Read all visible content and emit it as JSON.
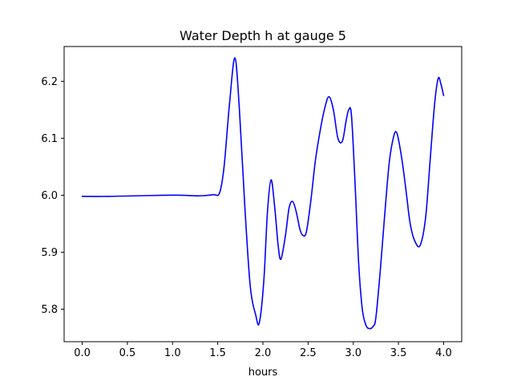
{
  "chart_data": {
    "type": "line",
    "title": "Water Depth h at gauge 5",
    "xlabel": "hours",
    "ylabel": "",
    "xlim": [
      -0.2,
      4.2
    ],
    "ylim": [
      5.743,
      6.261
    ],
    "x_ticks": [
      0.0,
      0.5,
      1.0,
      1.5,
      2.0,
      2.5,
      3.0,
      3.5,
      4.0
    ],
    "x_tick_labels": [
      "0.0",
      "0.5",
      "1.0",
      "1.5",
      "2.0",
      "2.5",
      "3.0",
      "3.5",
      "4.0"
    ],
    "y_ticks": [
      5.8,
      5.9,
      6.0,
      6.1,
      6.2
    ],
    "y_tick_labels": [
      "5.8",
      "5.9",
      "6.0",
      "6.1",
      "6.2"
    ],
    "grid": false,
    "legend": "none",
    "series": [
      {
        "color": "#0000ff",
        "x": [
          0.0,
          0.3,
          0.6,
          0.9,
          1.1,
          1.3,
          1.45,
          1.52,
          1.57,
          1.63,
          1.69,
          1.74,
          1.8,
          1.86,
          1.92,
          1.96,
          2.01,
          2.05,
          2.09,
          2.13,
          2.17,
          2.2,
          2.25,
          2.29,
          2.33,
          2.37,
          2.41,
          2.44,
          2.48,
          2.53,
          2.58,
          2.63,
          2.68,
          2.73,
          2.78,
          2.83,
          2.88,
          2.92,
          2.95,
          2.98,
          3.02,
          3.06,
          3.1,
          3.14,
          3.18,
          3.22,
          3.25,
          3.3,
          3.35,
          3.4,
          3.45,
          3.48,
          3.51,
          3.55,
          3.59,
          3.63,
          3.68,
          3.74,
          3.8,
          3.85,
          3.9,
          3.94,
          3.97,
          4.0
        ],
        "y": [
          5.998,
          5.998,
          5.999,
          6.0,
          6.0,
          5.999,
          6.001,
          6.004,
          6.05,
          6.16,
          6.241,
          6.15,
          5.98,
          5.84,
          5.79,
          5.776,
          5.85,
          5.97,
          6.027,
          5.98,
          5.91,
          5.888,
          5.93,
          5.978,
          5.989,
          5.97,
          5.94,
          5.93,
          5.935,
          5.99,
          6.06,
          6.11,
          6.15,
          6.173,
          6.15,
          6.1,
          6.095,
          6.13,
          6.15,
          6.14,
          6.02,
          5.88,
          5.8,
          5.772,
          5.766,
          5.77,
          5.785,
          5.87,
          5.97,
          6.06,
          6.105,
          6.11,
          6.09,
          6.05,
          6.0,
          5.95,
          5.92,
          5.912,
          5.96,
          6.06,
          6.16,
          6.205,
          6.195,
          6.175
        ]
      }
    ]
  }
}
